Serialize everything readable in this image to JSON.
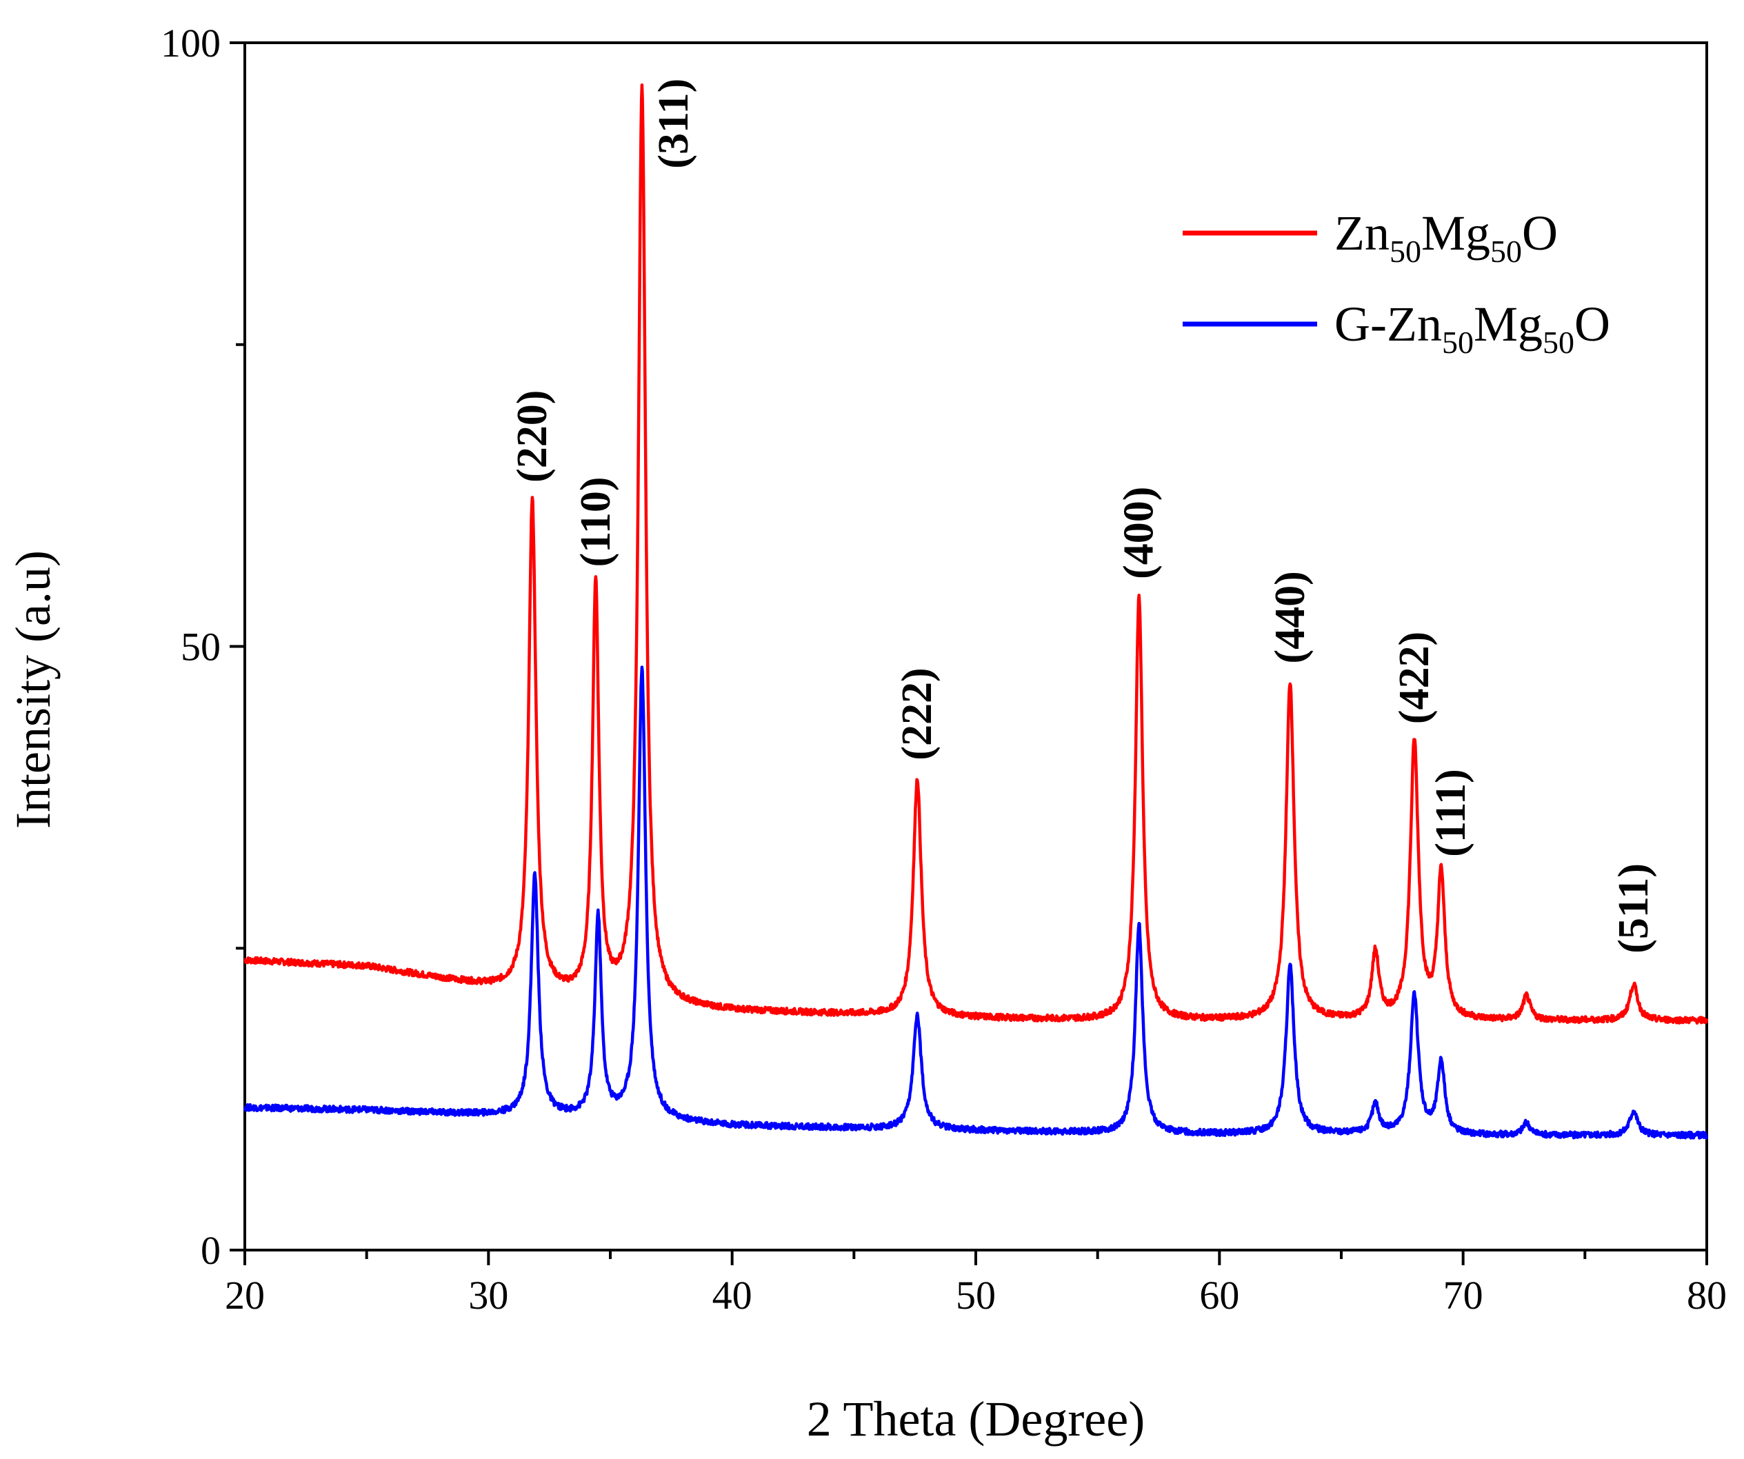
{
  "chart_data": {
    "type": "line",
    "title": "",
    "xlabel": "2 Theta (Degree)",
    "ylabel": "Intensity (a.u)",
    "xlim": [
      20,
      80
    ],
    "ylim": [
      0,
      100
    ],
    "xticks": [
      20,
      30,
      40,
      50,
      60,
      70,
      80
    ],
    "yticks": [
      0,
      50,
      100
    ],
    "legend_position": "top-right",
    "series": [
      {
        "name": "Zn50Mg50O",
        "legend": {
          "main1": "Zn",
          "sub1": "50",
          "main2": "Mg",
          "sub2": "50",
          "main3": "O"
        },
        "color": "#ff0000",
        "baseline": [
          [
            20,
            24
          ],
          [
            25,
            23.5
          ],
          [
            30,
            21.8
          ],
          [
            35,
            20.5
          ],
          [
            40,
            19.8
          ],
          [
            45,
            19.5
          ],
          [
            50,
            19.2
          ],
          [
            55,
            19.0
          ],
          [
            60,
            19.0
          ],
          [
            65,
            19.0
          ],
          [
            70,
            19.0
          ],
          [
            75,
            19.0
          ],
          [
            80,
            19.0
          ]
        ],
        "peaks": [
          {
            "x": 31.8,
            "y": 62,
            "w": 0.18
          },
          {
            "x": 34.4,
            "y": 55,
            "w": 0.16
          },
          {
            "x": 36.3,
            "y": 96,
            "w": 0.18
          },
          {
            "x": 47.6,
            "y": 39,
            "w": 0.2
          },
          {
            "x": 56.7,
            "y": 54,
            "w": 0.18
          },
          {
            "x": 62.9,
            "y": 47,
            "w": 0.2
          },
          {
            "x": 66.4,
            "y": 24.5,
            "w": 0.18
          },
          {
            "x": 68.0,
            "y": 42,
            "w": 0.2
          },
          {
            "x": 69.1,
            "y": 31,
            "w": 0.18
          },
          {
            "x": 72.6,
            "y": 21,
            "w": 0.18
          },
          {
            "x": 77.0,
            "y": 22,
            "w": 0.2
          }
        ]
      },
      {
        "name": "G-Zn50Mg50O",
        "legend": {
          "main1": "G-Zn",
          "sub1": "50",
          "main2": "Mg",
          "sub2": "50",
          "main3": "O"
        },
        "color": "#0000ff",
        "baseline": [
          [
            20,
            11.8
          ],
          [
            25,
            11.6
          ],
          [
            30,
            11.2
          ],
          [
            35,
            10.9
          ],
          [
            40,
            10.3
          ],
          [
            45,
            10.1
          ],
          [
            50,
            9.9
          ],
          [
            55,
            9.7
          ],
          [
            60,
            9.6
          ],
          [
            65,
            9.6
          ],
          [
            70,
            9.5
          ],
          [
            75,
            9.5
          ],
          [
            80,
            9.5
          ]
        ],
        "peaks": [
          {
            "x": 31.9,
            "y": 31,
            "w": 0.18
          },
          {
            "x": 34.5,
            "y": 27.5,
            "w": 0.16
          },
          {
            "x": 36.3,
            "y": 48,
            "w": 0.18
          },
          {
            "x": 47.6,
            "y": 19.5,
            "w": 0.2
          },
          {
            "x": 56.7,
            "y": 27,
            "w": 0.18
          },
          {
            "x": 62.9,
            "y": 23.5,
            "w": 0.2
          },
          {
            "x": 66.4,
            "y": 12,
            "w": 0.18
          },
          {
            "x": 68.0,
            "y": 21,
            "w": 0.2
          },
          {
            "x": 69.1,
            "y": 15.5,
            "w": 0.18
          },
          {
            "x": 72.6,
            "y": 10.5,
            "w": 0.18
          },
          {
            "x": 77.0,
            "y": 11.5,
            "w": 0.2
          }
        ]
      }
    ],
    "annotations": [
      {
        "text": "(220)",
        "x": 31.8,
        "y": 63
      },
      {
        "text": "(110)",
        "x": 34.4,
        "y": 56
      },
      {
        "text": "(311)",
        "x": 37.6,
        "y": 89
      },
      {
        "text": "(222)",
        "x": 47.6,
        "y": 40
      },
      {
        "text": "(400)",
        "x": 56.7,
        "y": 55
      },
      {
        "text": "(440)",
        "x": 62.9,
        "y": 48
      },
      {
        "text": "(422)",
        "x": 68.0,
        "y": 43
      },
      {
        "text": "(111)",
        "x": 69.5,
        "y": 32
      },
      {
        "text": "(511)",
        "x": 77.0,
        "y": 24
      }
    ]
  }
}
